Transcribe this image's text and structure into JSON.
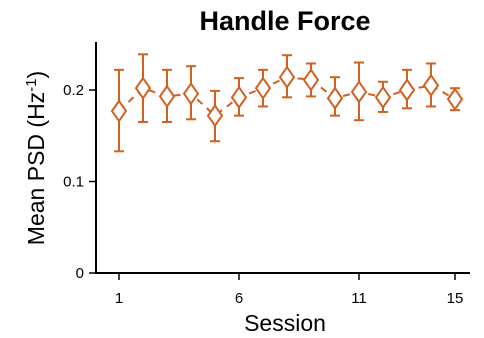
{
  "chart_data": {
    "type": "scatter",
    "title": "Handle Force",
    "xlabel": "Session",
    "ylabel_main": "Mean PSD (Hz",
    "ylabel_sup": "-1",
    "ylabel_close": ")",
    "xlim": [
      0,
      16
    ],
    "ylim": [
      0,
      0.25
    ],
    "xticks": [
      1,
      6,
      11,
      15
    ],
    "xtick_labels": [
      "1",
      "6",
      "11",
      "15"
    ],
    "yticks": [
      0,
      0.1,
      0.2
    ],
    "ytick_labels": [
      "0",
      "0.1",
      "0.2"
    ],
    "marker": "diamond-open",
    "line_style": "dashed",
    "color": "#d2601f",
    "series": [
      {
        "x": [
          1,
          2,
          3,
          4,
          5,
          6,
          7,
          8,
          9,
          10,
          11,
          12,
          13,
          14,
          15
        ],
        "values": [
          0.177,
          0.202,
          0.193,
          0.196,
          0.172,
          0.192,
          0.202,
          0.214,
          0.211,
          0.191,
          0.198,
          0.192,
          0.2,
          0.205,
          0.19
        ],
        "err_low": [
          0.133,
          0.165,
          0.165,
          0.168,
          0.144,
          0.172,
          0.182,
          0.192,
          0.193,
          0.172,
          0.167,
          0.176,
          0.18,
          0.182,
          0.178
        ],
        "err_high": [
          0.222,
          0.239,
          0.222,
          0.226,
          0.199,
          0.213,
          0.222,
          0.238,
          0.229,
          0.214,
          0.23,
          0.209,
          0.222,
          0.229,
          0.202
        ]
      }
    ]
  }
}
